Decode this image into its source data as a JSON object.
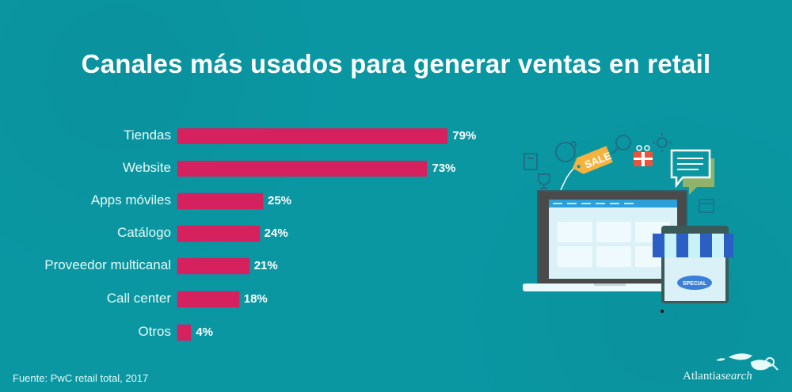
{
  "title": "Canales más usados para generar ventas en retail",
  "footer": {
    "source": "Fuente: PwC retail total, 2017"
  },
  "logo": {
    "brand_main": "Atlantia",
    "brand_italic": "search"
  },
  "colors": {
    "background": "#0a97a2",
    "bar": "#d5215d",
    "label": "#e6fbf8",
    "value": "#ffffff"
  },
  "illustration": {
    "sale_tag": "SALE",
    "store_badge": "SPECIAL",
    "icons": [
      "book-icon",
      "trophy-icon",
      "globe-icon",
      "sale-tag-icon",
      "magnifier-icon",
      "gift-icon",
      "sun-icon",
      "chat-bubble-icon",
      "calendar-icon",
      "laptop-icon",
      "storefront-icon"
    ]
  },
  "chart_data": {
    "type": "bar",
    "orientation": "horizontal",
    "title": "Canales más usados para generar ventas en retail",
    "xlabel": "",
    "ylabel": "",
    "categories": [
      "Tiendas",
      "Website",
      "Apps móviles",
      "Catálogo",
      "Proveedor multicanal",
      "Call center",
      "Otros"
    ],
    "values": [
      79,
      73,
      25,
      24,
      21,
      18,
      4
    ],
    "value_labels": [
      "79%",
      "73%",
      "25%",
      "24%",
      "21%",
      "18%",
      "4%"
    ],
    "unit": "%",
    "xlim": [
      0,
      100
    ],
    "grid": false,
    "legend": null,
    "source": "Fuente: PwC retail total, 2017"
  }
}
